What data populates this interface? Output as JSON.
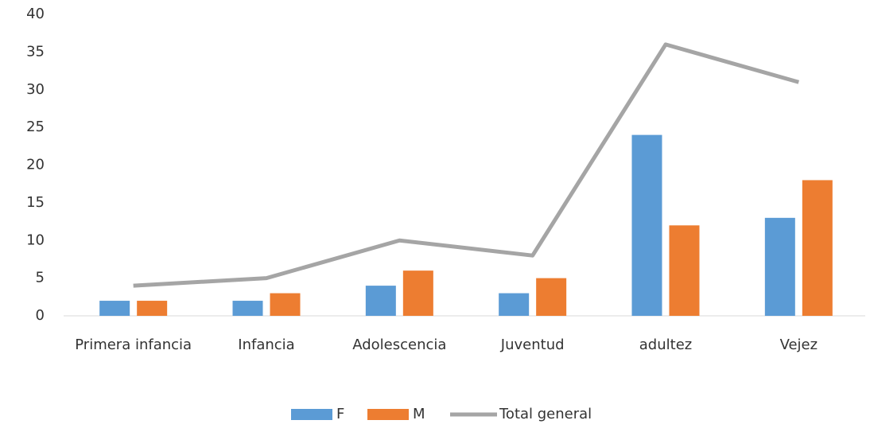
{
  "chart_data": {
    "type": "bar",
    "categories": [
      "Primera infancia",
      "Infancia",
      "Adolescencia",
      "Juventud",
      "adultez",
      "Vejez"
    ],
    "series": [
      {
        "name": "F",
        "color": "#5b9bd5",
        "type": "bar",
        "values": [
          2,
          2,
          4,
          3,
          24,
          13
        ]
      },
      {
        "name": "M",
        "color": "#ed7d31",
        "type": "bar",
        "values": [
          2,
          3,
          6,
          5,
          12,
          18
        ]
      },
      {
        "name": "Total general",
        "color": "#a5a5a5",
        "type": "line",
        "values": [
          4,
          5,
          10,
          8,
          36,
          31
        ]
      }
    ],
    "ylim": [
      0,
      40
    ],
    "yticks": [
      0,
      5,
      10,
      15,
      20,
      25,
      30,
      35,
      40
    ],
    "grid": false,
    "legend": "bottom"
  }
}
